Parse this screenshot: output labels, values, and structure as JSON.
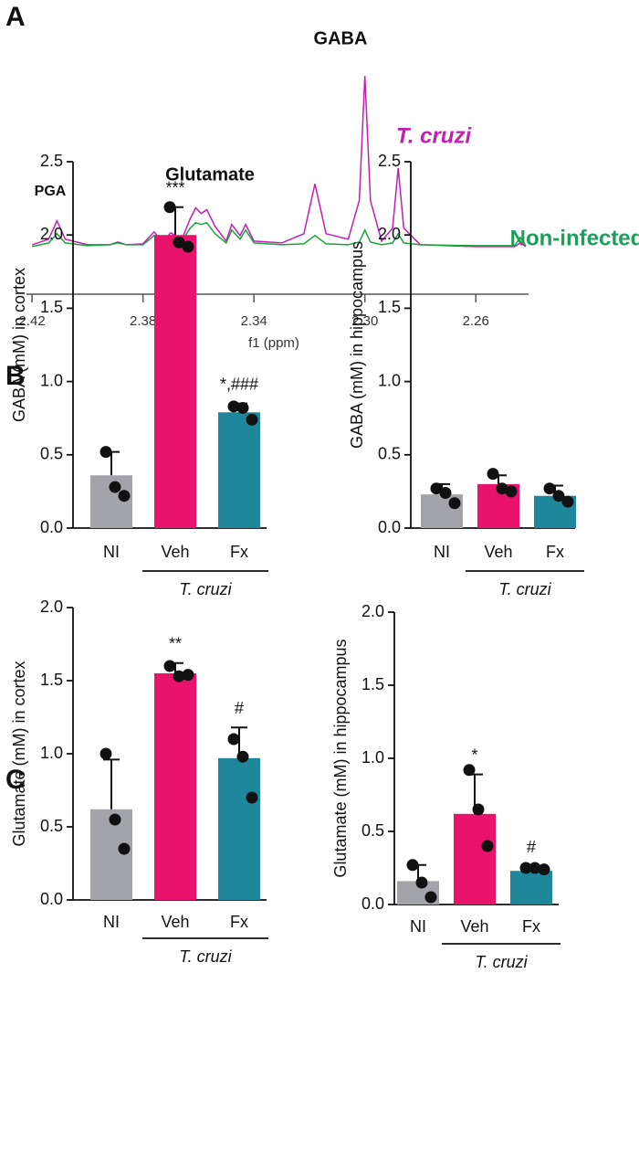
{
  "chart_data": [
    {
      "type": "line",
      "panel_label": "A",
      "xlabel": "f1 (ppm)",
      "annotations": [
        "PGA",
        "Glutamate",
        "GABA"
      ],
      "x": [
        2.42,
        2.414,
        2.411,
        2.408,
        2.4,
        2.392,
        2.389,
        2.386,
        2.38,
        2.376,
        2.373,
        2.37,
        2.366,
        2.363,
        2.361,
        2.359,
        2.357,
        2.354,
        2.35,
        2.348,
        2.345,
        2.343,
        2.34,
        2.33,
        2.322,
        2.318,
        2.314,
        2.306,
        2.302,
        2.3,
        2.298,
        2.294,
        2.29,
        2.288,
        2.286,
        2.28,
        2.26,
        2.246,
        2.244,
        2.242
      ],
      "xlim": [
        2.422,
        2.241
      ],
      "xticks": [
        2.42,
        2.38,
        2.34,
        {
          "value": 2.3,
          "label": "2.30"
        },
        2.26
      ],
      "ylim": [
        -8,
        200
      ],
      "series": [
        {
          "name": "T. cruzi",
          "color": "#c21fb4",
          "values": [
            2,
            8,
            28,
            8,
            2,
            2,
            5,
            2,
            3,
            16,
            5,
            15,
            8,
            30,
            42,
            36,
            40,
            22,
            6,
            24,
            12,
            24,
            6,
            4,
            14,
            68,
            14,
            8,
            50,
            185,
            50,
            6,
            20,
            85,
            20,
            2,
            0,
            0,
            4,
            0
          ]
        },
        {
          "name": "Non-infected",
          "color": "#1aa53c",
          "values": [
            0,
            4,
            14,
            4,
            1,
            2,
            4,
            2,
            2,
            12,
            4,
            12,
            6,
            20,
            26,
            24,
            26,
            14,
            4,
            18,
            8,
            18,
            4,
            2,
            3,
            12,
            3,
            2,
            5,
            18,
            5,
            2,
            4,
            14,
            4,
            2,
            1,
            1,
            10,
            1
          ]
        }
      ]
    },
    {
      "type": "bar",
      "panel_label": "B",
      "ylabel": "GABA (mM) in cortex",
      "group_label": "T. cruzi",
      "categories": [
        "NI",
        "Veh",
        "Fx"
      ],
      "colors": [
        "#a3a3aa",
        "#e8136b",
        "#1e879c"
      ],
      "values": [
        0.36,
        2.0,
        0.79
      ],
      "errors": [
        0.16,
        0.19,
        0.06
      ],
      "points": [
        [
          0.52,
          0.28,
          0.22
        ],
        [
          2.19,
          1.95,
          1.92
        ],
        [
          0.83,
          0.82,
          0.74
        ]
      ],
      "annotations": [
        null,
        "***",
        "*,###"
      ],
      "ylim": [
        0,
        2.5
      ],
      "yticks": [
        {
          "value": 0,
          "label": "0.0"
        },
        0.5,
        {
          "value": 1,
          "label": "1.0"
        },
        1.5,
        {
          "value": 2,
          "label": "2.0"
        },
        2.5
      ]
    },
    {
      "type": "bar",
      "ylabel": "GABA (mM) in hippocampus",
      "group_label": "T. cruzi",
      "categories": [
        "NI",
        "Veh",
        "Fx"
      ],
      "colors": [
        "#a3a3aa",
        "#e8136b",
        "#1e879c"
      ],
      "values": [
        0.23,
        0.3,
        0.22
      ],
      "errors": [
        0.07,
        0.06,
        0.07
      ],
      "points": [
        [
          0.27,
          0.24,
          0.17
        ],
        [
          0.37,
          0.27,
          0.25
        ],
        [
          0.27,
          0.22,
          0.18
        ]
      ],
      "ylim": [
        0,
        2.5
      ],
      "yticks": [
        {
          "value": 0,
          "label": "0.0"
        },
        0.5,
        {
          "value": 1,
          "label": "1.0"
        },
        1.5,
        {
          "value": 2,
          "label": "2.0"
        },
        2.5
      ]
    },
    {
      "type": "bar",
      "panel_label": "C",
      "ylabel": "Glutamate (mM) in cortex",
      "group_label": "T. cruzi",
      "categories": [
        "NI",
        "Veh",
        "Fx"
      ],
      "colors": [
        "#a3a3aa",
        "#e8136b",
        "#1e879c"
      ],
      "values": [
        0.62,
        1.55,
        0.97
      ],
      "errors": [
        0.34,
        0.07,
        0.21
      ],
      "points": [
        [
          1.0,
          0.55,
          0.35
        ],
        [
          1.6,
          1.53,
          1.54
        ],
        [
          1.1,
          0.98,
          0.7
        ]
      ],
      "annotations": [
        null,
        "**",
        "#"
      ],
      "ylim": [
        0,
        2
      ],
      "yticks": [
        {
          "value": 0,
          "label": "0.0"
        },
        0.5,
        {
          "value": 1,
          "label": "1.0"
        },
        1.5,
        {
          "value": 2,
          "label": "2.0"
        }
      ]
    },
    {
      "type": "bar",
      "ylabel": "Glutamate (mM) in hippocampus",
      "group_label": "T. cruzi",
      "categories": [
        "NI",
        "Veh",
        "Fx"
      ],
      "colors": [
        "#a3a3aa",
        "#e8136b",
        "#1e879c"
      ],
      "values": [
        0.16,
        0.62,
        0.23
      ],
      "errors": [
        0.11,
        0.27,
        0.03
      ],
      "points": [
        [
          0.27,
          0.15,
          0.05
        ],
        [
          0.92,
          0.65,
          0.4
        ],
        [
          0.25,
          0.25,
          0.24
        ]
      ],
      "annotations": [
        null,
        "*",
        "#"
      ],
      "ylim": [
        0,
        2
      ],
      "yticks": [
        {
          "value": 0,
          "label": "0.0"
        },
        0.5,
        {
          "value": 1,
          "label": "1.0"
        },
        1.5,
        {
          "value": 2,
          "label": "2.0"
        }
      ]
    }
  ]
}
